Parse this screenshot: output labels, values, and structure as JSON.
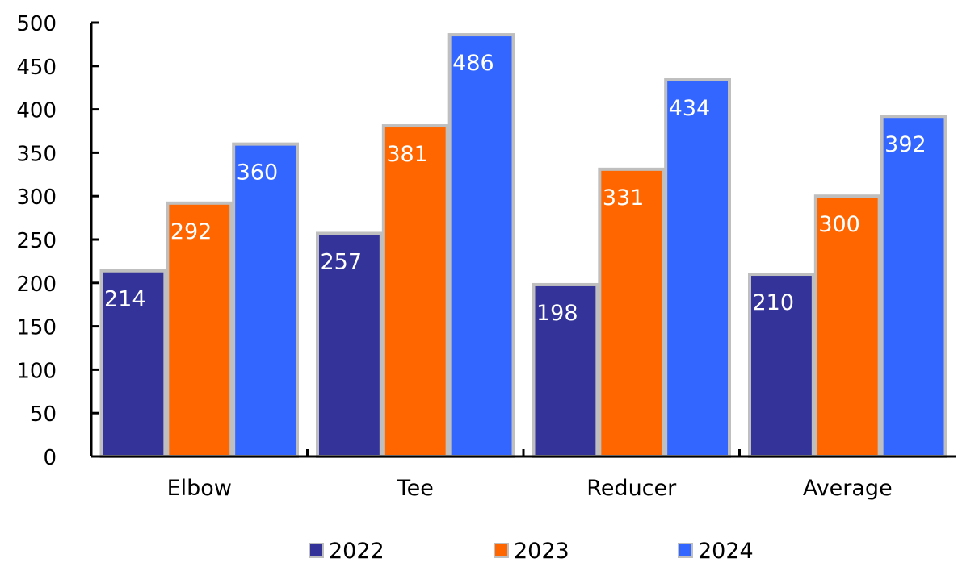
{
  "chart_data": {
    "type": "bar",
    "title": "",
    "xlabel": "",
    "ylabel": "",
    "categories": [
      "Elbow",
      "Tee",
      "Reducer",
      "Average"
    ],
    "series": [
      {
        "name": "2022",
        "color": "#333399",
        "values": [
          214,
          257,
          198,
          210
        ]
      },
      {
        "name": "2023",
        "color": "#FF6600",
        "values": [
          292,
          381,
          331,
          300
        ]
      },
      {
        "name": "2024",
        "color": "#3366FF",
        "values": [
          360,
          486,
          434,
          392
        ]
      }
    ],
    "ylim": [
      0,
      500
    ],
    "yticks": [
      0,
      50,
      100,
      150,
      200,
      250,
      300,
      350,
      400,
      450,
      500
    ],
    "data_labels": true,
    "data_label_color": "#FFFFFF",
    "bar_border_color": "#BFBFBF",
    "grid": false,
    "legend": "bottom-center"
  }
}
